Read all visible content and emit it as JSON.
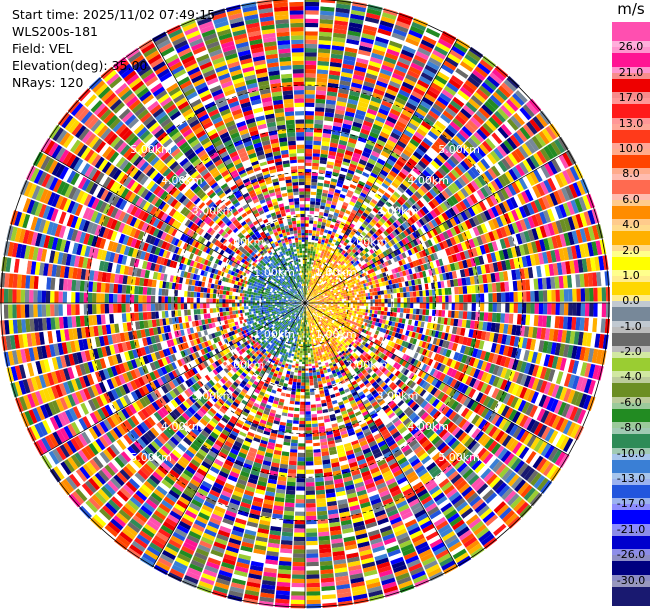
{
  "header": {
    "start_time": "Start time: 2025/11/02 07:49:15",
    "instrument": "WLS200s-181",
    "field": "Field: VEL",
    "elevation": "Elevation(deg): 35.00",
    "nrays": "NRays: 120"
  },
  "chart_data": {
    "type": "heatmap",
    "projection": "polar-ppi",
    "field": "VEL",
    "unit": "m/s",
    "n_rays": 120,
    "elevation_deg": 35.0,
    "range_rings_km": [
      1.0,
      2.0,
      3.0,
      4.0,
      5.0
    ],
    "ring_labels": [
      "1.00km",
      "2.00km",
      "3.00km",
      "4.00km",
      "5.00km"
    ],
    "max_range_km": 7.0,
    "colorbar": {
      "ticks": [
        "26.0",
        "21.0",
        "17.0",
        "13.0",
        "10.0",
        "8.0",
        "6.0",
        "4.0",
        "2.0",
        "1.0",
        "0.0",
        "-1.0",
        "-2.0",
        "-4.0",
        "-6.0",
        "-8.0",
        "-10.0",
        "-13.0",
        "-17.0",
        "-21.0",
        "-26.0",
        "-30.0"
      ],
      "colors": [
        "#ff4fb0",
        "#ff1493",
        "#ee0000",
        "#ff1a1a",
        "#ff3a1a",
        "#ff4500",
        "#ff6a50",
        "#ff8c00",
        "#ffb000",
        "#ffff00",
        "#ffd700",
        "#778899",
        "#696969",
        "#9acd32",
        "#6b8e23",
        "#228b22",
        "#2e8b57",
        "#3a7fd5",
        "#2255dd",
        "#0000ff",
        "#0000cd",
        "#000080",
        "#191970"
      ]
    }
  }
}
